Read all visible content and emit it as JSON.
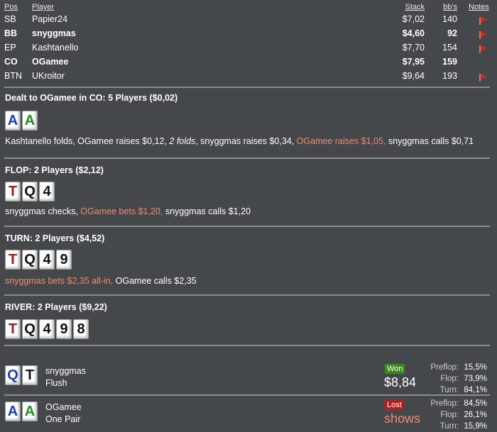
{
  "table": {
    "headers": {
      "pos": "Pos",
      "player": "Player",
      "stack": "Stack",
      "bbs": "bb's",
      "notes": "Notes"
    },
    "rows": [
      {
        "pos": "SB",
        "player": "Papier24",
        "stack": "$7,02",
        "bbs": "140",
        "note": true,
        "bold": false
      },
      {
        "pos": "BB",
        "player": "snyggmas",
        "stack": "$4,60",
        "bbs": "92",
        "note": true,
        "bold": true
      },
      {
        "pos": "EP",
        "player": "Kashtanello",
        "stack": "$7,70",
        "bbs": "154",
        "note": true,
        "bold": false
      },
      {
        "pos": "CO",
        "player": "OGamee",
        "stack": "$7,95",
        "bbs": "159",
        "note": false,
        "bold": true
      },
      {
        "pos": "BTN",
        "player": "UKroitor",
        "stack": "$9,64",
        "bbs": "193",
        "note": true,
        "bold": false
      }
    ]
  },
  "preflop": {
    "title": "Dealt to OGamee in CO: 5 Players ($0,02)",
    "cards": [
      {
        "r": "A",
        "c": "#1a3fb0"
      },
      {
        "r": "A",
        "c": "#1f8a1f"
      }
    ],
    "actions": [
      {
        "t": "Kashtanello folds, OGamee raises $0,12, "
      },
      {
        "t": "2 folds",
        "i": true
      },
      {
        "t": ", snyggmas raises $0,34, "
      },
      {
        "t": "OGamee raises $1,05,",
        "h": true
      },
      {
        "t": " snyggmas calls $0,71"
      }
    ]
  },
  "flop": {
    "title": "FLOP: 2 Players ($2,12)",
    "cards": [
      {
        "r": "T",
        "c": "#a01818"
      },
      {
        "r": "Q",
        "c": "#111"
      },
      {
        "r": "4",
        "c": "#111"
      }
    ],
    "actions": [
      {
        "t": "snyggmas checks, "
      },
      {
        "t": "OGamee bets $1,20,",
        "h": true
      },
      {
        "t": " snyggmas calls $1,20"
      }
    ]
  },
  "turn": {
    "title": "TURN: 2 Players ($4,52)",
    "cards": [
      {
        "r": "T",
        "c": "#a01818"
      },
      {
        "r": "Q",
        "c": "#111"
      },
      {
        "r": "4",
        "c": "#111"
      },
      {
        "r": "9",
        "c": "#111"
      }
    ],
    "actions": [
      {
        "t": "snyggmas bets $2,35 all-in,",
        "h": true
      },
      {
        "t": " OGamee calls $2,35"
      }
    ]
  },
  "river": {
    "title": "RIVER: 2 Players ($9,22)",
    "cards": [
      {
        "r": "T",
        "c": "#a01818"
      },
      {
        "r": "Q",
        "c": "#111"
      },
      {
        "r": "4",
        "c": "#111"
      },
      {
        "r": "9",
        "c": "#111"
      },
      {
        "r": "8",
        "c": "#111"
      }
    ]
  },
  "results": [
    {
      "player": "snyggmas",
      "hand": "Flush",
      "cards": [
        {
          "r": "Q",
          "c": "#1a3fb0"
        },
        {
          "r": "T",
          "c": "#111"
        }
      ],
      "badge": "Won",
      "badge_color": "#3a8a1a",
      "amount": "$8,84",
      "amount_color": "#ffffff",
      "equity": [
        {
          "l": "Preflop:",
          "v": "15,5%"
        },
        {
          "l": "Flop:",
          "v": "73,9%"
        },
        {
          "l": "Turn:",
          "v": "84,1%"
        }
      ]
    },
    {
      "player": "OGamee",
      "hand": "One Pair",
      "cards": [
        {
          "r": "A",
          "c": "#1a3fb0"
        },
        {
          "r": "A",
          "c": "#1f8a1f"
        }
      ],
      "badge": "Lost",
      "badge_color": "#b02020",
      "amount": "shows",
      "amount_color": "#ef8a72",
      "equity": [
        {
          "l": "Preflop:",
          "v": "84,5%"
        },
        {
          "l": "Flop:",
          "v": "26,1%"
        },
        {
          "l": "Turn:",
          "v": "15,9%"
        }
      ]
    }
  ]
}
